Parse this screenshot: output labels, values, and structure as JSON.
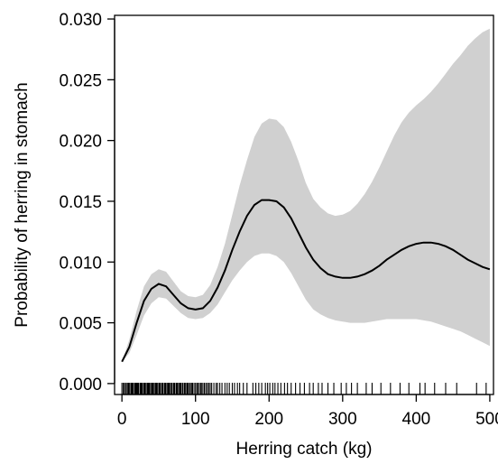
{
  "chart_data": {
    "type": "line",
    "title": "",
    "xlabel": "Herring catch (kg)",
    "ylabel": "Probability of herring in stomach",
    "xlim": [
      -10,
      505
    ],
    "ylim": [
      0.0,
      0.03
    ],
    "xticks": [
      0,
      100,
      200,
      300,
      400,
      500
    ],
    "xtick_labels": [
      "0",
      "100",
      "200",
      "300",
      "400",
      "500"
    ],
    "yticks": [
      0.0,
      0.005,
      0.01,
      0.015,
      0.02,
      0.025,
      0.03
    ],
    "ytick_labels": [
      "0.000",
      "0.005",
      "0.010",
      "0.015",
      "0.020",
      "0.025",
      "0.030"
    ],
    "grid": false,
    "fit_color": "#000000",
    "band_color": "#d0d0d0",
    "series": [
      {
        "x": [
          0,
          10,
          20,
          30,
          40,
          50,
          60,
          70,
          80,
          90,
          100,
          110,
          120,
          130,
          140,
          150,
          160,
          170,
          180,
          190,
          200,
          210,
          220,
          230,
          240,
          250,
          260,
          270,
          280,
          290,
          300,
          310,
          320,
          330,
          340,
          350,
          360,
          370,
          380,
          390,
          400,
          410,
          420,
          430,
          440,
          450,
          460,
          470,
          480,
          490,
          500
        ],
        "estimate": [
          0.0018,
          0.003,
          0.005,
          0.0068,
          0.0078,
          0.0082,
          0.008,
          0.0073,
          0.0066,
          0.0062,
          0.0061,
          0.0062,
          0.0068,
          0.0079,
          0.0093,
          0.011,
          0.0125,
          0.0138,
          0.0147,
          0.0151,
          0.0151,
          0.015,
          0.0145,
          0.0136,
          0.0124,
          0.0112,
          0.0102,
          0.0095,
          0.009,
          0.0088,
          0.0087,
          0.0087,
          0.0088,
          0.009,
          0.0093,
          0.0097,
          0.0102,
          0.0106,
          0.011,
          0.0113,
          0.0115,
          0.0116,
          0.0116,
          0.0115,
          0.0113,
          0.011,
          0.0106,
          0.0102,
          0.0099,
          0.0096,
          0.0094
        ],
        "lower": [
          0.0018,
          0.0025,
          0.004,
          0.0056,
          0.0066,
          0.0071,
          0.007,
          0.0064,
          0.0058,
          0.0054,
          0.0053,
          0.0054,
          0.0058,
          0.0065,
          0.0075,
          0.0085,
          0.0093,
          0.01,
          0.0105,
          0.0107,
          0.0107,
          0.0105,
          0.01,
          0.0091,
          0.008,
          0.0069,
          0.0061,
          0.0057,
          0.0054,
          0.0052,
          0.0051,
          0.005,
          0.005,
          0.005,
          0.0051,
          0.0052,
          0.0053,
          0.0053,
          0.0053,
          0.0053,
          0.0053,
          0.0052,
          0.0051,
          0.0049,
          0.0047,
          0.0045,
          0.0043,
          0.004,
          0.0037,
          0.0034,
          0.0031
        ],
        "upper": [
          0.0018,
          0.0036,
          0.006,
          0.008,
          0.009,
          0.0094,
          0.0092,
          0.0084,
          0.0076,
          0.0072,
          0.0071,
          0.0073,
          0.0081,
          0.0096,
          0.0115,
          0.0139,
          0.0163,
          0.0184,
          0.0203,
          0.0214,
          0.0218,
          0.0217,
          0.0211,
          0.0199,
          0.0183,
          0.0165,
          0.0152,
          0.0145,
          0.014,
          0.0138,
          0.0139,
          0.0142,
          0.0148,
          0.0156,
          0.0166,
          0.0178,
          0.0191,
          0.0204,
          0.0215,
          0.0223,
          0.0229,
          0.0234,
          0.024,
          0.0247,
          0.0255,
          0.0263,
          0.027,
          0.0278,
          0.0284,
          0.0289,
          0.0292
        ]
      }
    ],
    "rug": [
      0,
      2,
      3,
      5,
      6,
      8,
      9,
      10,
      12,
      13,
      14,
      15,
      17,
      18,
      19,
      20,
      21,
      22,
      23,
      25,
      26,
      27,
      28,
      30,
      31,
      32,
      34,
      35,
      36,
      37,
      38,
      40,
      41,
      42,
      43,
      45,
      46,
      47,
      48,
      50,
      51,
      52,
      54,
      55,
      56,
      58,
      59,
      60,
      62,
      63,
      64,
      65,
      67,
      68,
      70,
      71,
      72,
      74,
      75,
      76,
      78,
      79,
      80,
      82,
      83,
      85,
      86,
      88,
      89,
      90,
      92,
      93,
      95,
      96,
      98,
      100,
      102,
      103,
      105,
      107,
      108,
      110,
      112,
      114,
      116,
      118,
      120,
      122,
      125,
      128,
      130,
      133,
      136,
      140,
      143,
      146,
      150,
      153,
      157,
      160,
      165,
      170,
      178,
      182,
      186,
      190,
      195,
      198,
      201,
      205,
      208,
      212,
      216,
      221,
      225,
      230,
      236,
      242,
      248,
      255,
      260,
      267,
      272,
      280,
      288,
      298,
      305,
      312,
      320,
      332,
      340,
      352,
      365,
      378,
      390,
      405,
      412,
      425,
      440,
      455,
      482,
      495
    ]
  }
}
